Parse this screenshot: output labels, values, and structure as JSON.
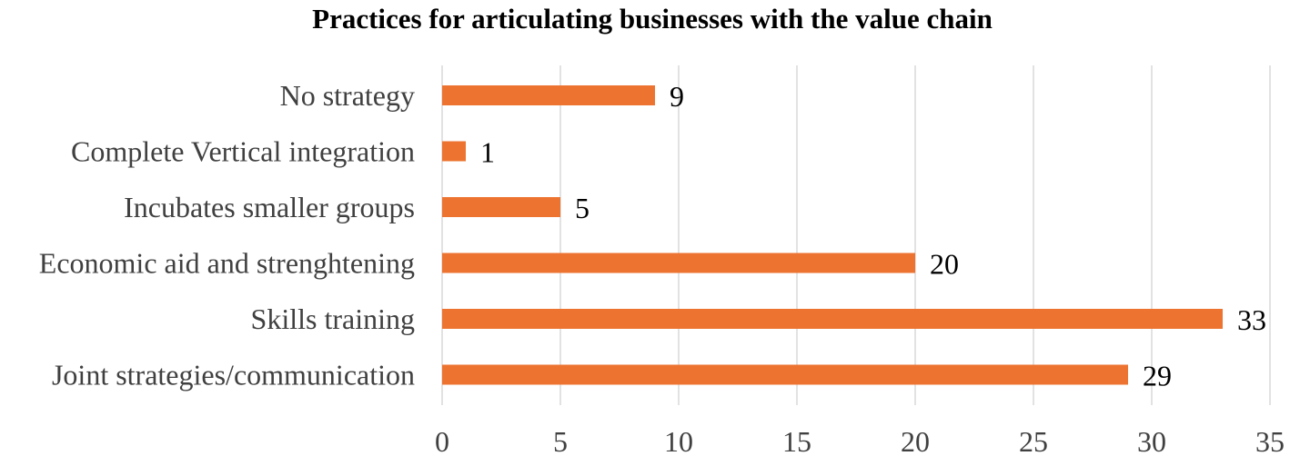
{
  "chart_data": {
    "type": "bar",
    "orientation": "horizontal",
    "title": "Practices for articulating businesses with the value chain",
    "categories": [
      "No strategy",
      "Complete Vertical integration",
      "Incubates smaller groups",
      "Economic aid and strenghtening",
      "Skills training",
      "Joint strategies/communication"
    ],
    "values": [
      9,
      1,
      5,
      20,
      33,
      29
    ],
    "xlim": [
      0,
      35
    ],
    "x_ticks": [
      0,
      5,
      10,
      15,
      20,
      25,
      30,
      35
    ],
    "grid": true,
    "legend": "none",
    "bar_color": "#ED7330",
    "grid_color": "#D9D9D9",
    "show_data_labels": true
  }
}
